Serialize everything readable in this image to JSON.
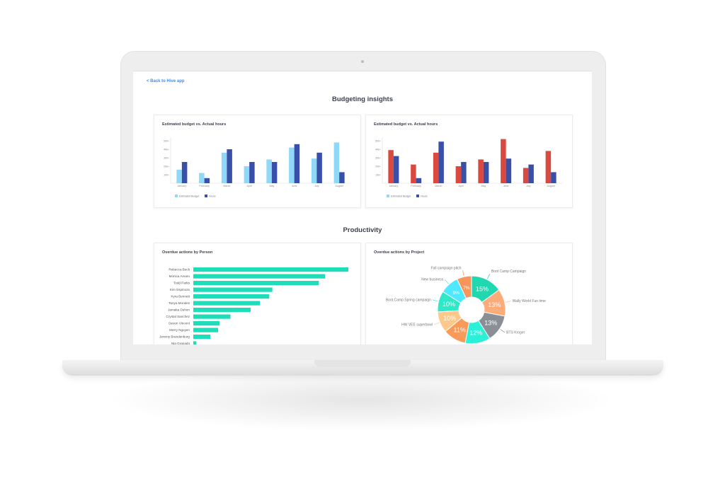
{
  "nav": {
    "back_link": "< Back to Hive app"
  },
  "sections": {
    "budgeting": "Budgeting insights",
    "productivity": "Productivity"
  },
  "chart_data": [
    {
      "type": "bar",
      "title": "Estimated budget  vs. Actual hours",
      "categories": [
        "January",
        "February",
        "March",
        "April",
        "May",
        "June",
        "July",
        "August"
      ],
      "yticks": [
        "10k+",
        "20k+",
        "30k+",
        "40k+",
        "50k+"
      ],
      "ylim": [
        0,
        50
      ],
      "legend": "bottom-left",
      "series": [
        {
          "name": "Estimated Budget",
          "color": "#8fd8f8",
          "values": [
            16,
            12,
            36,
            20,
            28,
            42,
            29,
            48
          ]
        },
        {
          "name": "Hours",
          "color": "#3a4fa8",
          "values": [
            25,
            6,
            40,
            25,
            25,
            46,
            36,
            13
          ]
        }
      ]
    },
    {
      "type": "bar",
      "title": "Estimated budget  vs. Actual hours",
      "categories": [
        "January",
        "February",
        "March",
        "April",
        "May",
        "June",
        "July",
        "August"
      ],
      "yticks": [
        "10k+",
        "20k+",
        "30k+",
        "40k+",
        "50k+"
      ],
      "ylim": [
        0,
        50
      ],
      "legend": "bottom-left",
      "legend_colors": [
        "#8fd8f8",
        "#3a4fa8"
      ],
      "series": [
        {
          "name": "Estimated Budget",
          "color": "#d9493f",
          "values": [
            39,
            22,
            36,
            20,
            28,
            52,
            18,
            38
          ]
        },
        {
          "name": "Hours",
          "color": "#3a4fa8",
          "values": [
            32,
            6,
            49,
            25,
            25,
            29,
            22,
            13
          ]
        }
      ]
    },
    {
      "type": "bar",
      "orientation": "horizontal",
      "title": "Overdue actions by Person",
      "color": "#1fddb8",
      "categories": [
        "Rebecca Beck",
        "Monica Amaro",
        "Todd Parks",
        "Kim Espinoza",
        "Kyra Bennett",
        "Tanya Morales",
        "Jamaka Duhon",
        "Crystal Sanchez",
        "Devon Vincent",
        "Merry Nguyen",
        "Jeremy Brandenburg",
        "Nia Granado"
      ],
      "values": [
        100,
        85,
        81,
        51,
        49,
        43,
        37,
        24,
        17,
        16,
        11,
        2
      ]
    },
    {
      "type": "pie",
      "donut": true,
      "title": "Overdue actions by Project",
      "slices": [
        {
          "label": "Boot Camp Campaign",
          "value": 15,
          "text": "15%",
          "color": "#1fd8b0"
        },
        {
          "label": "Wally World Fun time",
          "value": 13,
          "text": "13%",
          "color": "#fdab78"
        },
        {
          "label": "BTS Kroger",
          "value": 13,
          "text": "13%",
          "color": "#8a8f96"
        },
        {
          "label": "",
          "value": 12,
          "text": "12%",
          "color": "#2af0d8"
        },
        {
          "label": "",
          "value": 11,
          "text": "11%",
          "color": "#f89a5a"
        },
        {
          "label": "HW VEE superbowl",
          "value": 10,
          "text": "10%",
          "color": "#fdc98a"
        },
        {
          "label": "Boot Camp Spring campaign",
          "value": 10,
          "text": "10%",
          "color": "#2ee8c8"
        },
        {
          "label": "New business",
          "value": 9,
          "text": "9%",
          "color": "#4ee8ff"
        },
        {
          "label": "Fall campaign pitch",
          "value": 7,
          "text": "7%",
          "color": "#f8955a"
        }
      ]
    }
  ]
}
